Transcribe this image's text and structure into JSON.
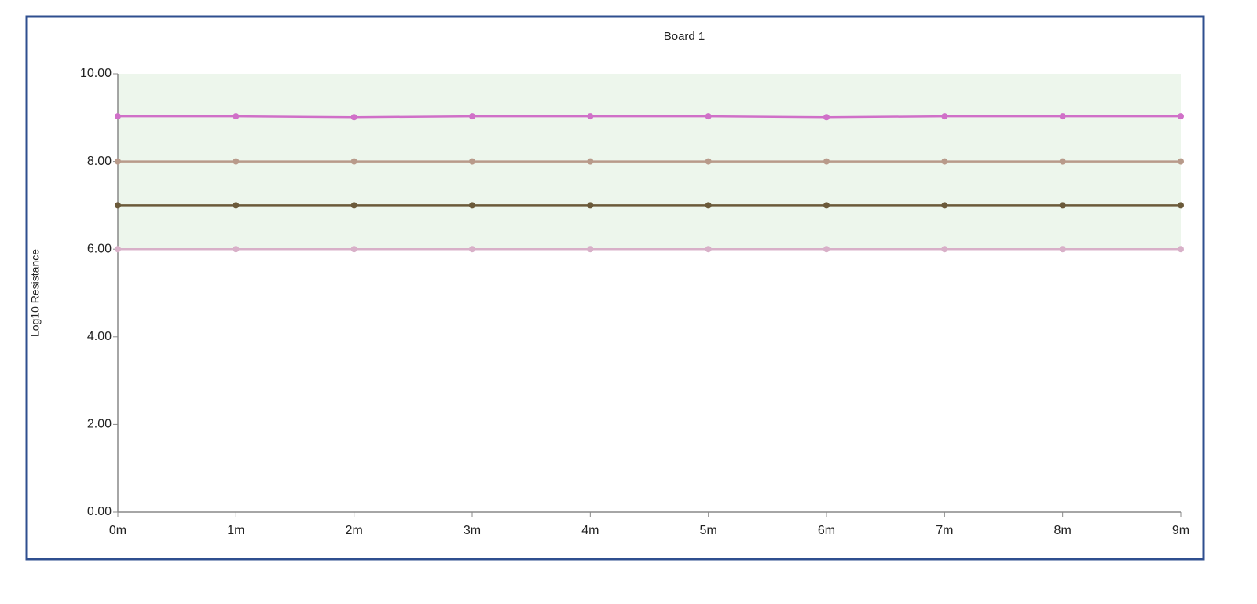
{
  "chart_data": {
    "type": "line",
    "title": "Board 1",
    "y_label": "Log10 Resistance",
    "categories": [
      "0m",
      "1m",
      "2m",
      "3m",
      "4m",
      "5m",
      "6m",
      "7m",
      "8m",
      "9m"
    ],
    "series": [
      {
        "color": "#d070c8",
        "values": [
          9.03,
          9.03,
          9.01,
          9.03,
          9.03,
          9.03,
          9.01,
          9.03,
          9.03,
          9.03
        ]
      },
      {
        "color": "#b89a8a",
        "values": [
          8,
          8,
          8,
          8,
          8,
          8,
          8,
          8,
          8,
          8
        ]
      },
      {
        "color": "#6b5a3a",
        "values": [
          7,
          7,
          7,
          7,
          7,
          7,
          7,
          7,
          7,
          7
        ]
      },
      {
        "color": "#d8b0c8",
        "values": [
          6,
          6,
          6,
          6,
          6,
          6,
          6,
          6,
          6,
          6
        ]
      }
    ],
    "shaded_range": [
      6,
      10
    ],
    "shaded_color": "#edf6ec",
    "ylim": [
      0,
      10
    ],
    "yticks": [
      {
        "value": 0,
        "label": "0.00"
      },
      {
        "value": 2,
        "label": "2.00"
      },
      {
        "value": 4,
        "label": "4.00"
      },
      {
        "value": 6,
        "label": "6.00"
      },
      {
        "value": 8,
        "label": "8.00"
      },
      {
        "value": 10,
        "label": "10.00"
      }
    ]
  }
}
